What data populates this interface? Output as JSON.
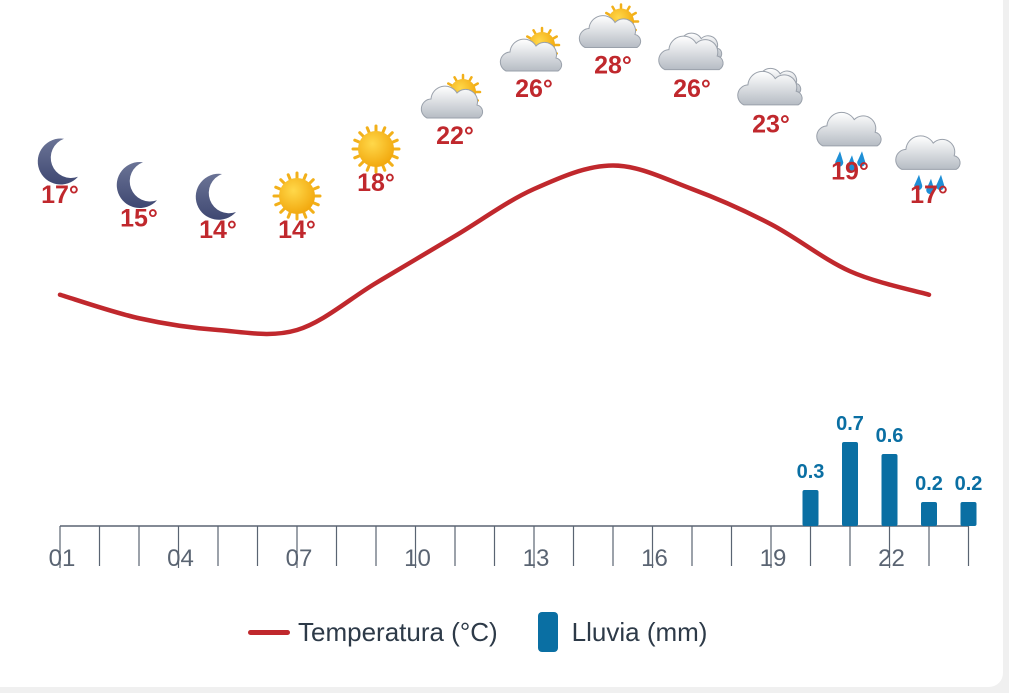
{
  "colors": {
    "temperature": "#c0282d",
    "rain": "#0a6fa3",
    "axis": "#5a6472",
    "legend_text": "#2d3a48"
  },
  "chart_data": {
    "type": "line",
    "x_tick_labels": [
      "01",
      "04",
      "07",
      "10",
      "13",
      "16",
      "19",
      "22"
    ],
    "hours": [
      1,
      3,
      5,
      7,
      9,
      11,
      13,
      15,
      17,
      19,
      21,
      23
    ],
    "icons": [
      "moon-icon",
      "moon-icon",
      "moon-icon",
      "sun-icon",
      "sun-icon",
      "sun-cloud-icon",
      "sun-cloud-icon",
      "sun-cloud-icon",
      "cloud-icon",
      "cloud-icon",
      "rain-cloud-icon",
      "rain-cloud-icon"
    ],
    "temperature_labels": [
      "17°",
      "15°",
      "14°",
      "14°",
      "18°",
      "22°",
      "26°",
      "28°",
      "26°",
      "23°",
      "19°",
      "17°"
    ],
    "series": [
      {
        "name": "Temperatura (°C)",
        "type": "line",
        "x": [
          1,
          3,
          5,
          7,
          9,
          11,
          13,
          15,
          17,
          19,
          21,
          23
        ],
        "values": [
          17,
          15,
          14,
          14,
          18,
          22,
          26,
          28,
          26,
          23,
          19,
          17
        ]
      },
      {
        "name": "Lluvia (mm)",
        "type": "bar",
        "x": [
          20,
          21,
          22,
          23,
          24
        ],
        "values": [
          0.3,
          0.7,
          0.6,
          0.2,
          0.2
        ],
        "labels": [
          "0.3",
          "0.7",
          "0.6",
          "0.2",
          "0.2"
        ]
      }
    ],
    "legend": [
      "Temperatura (°C)",
      "Lluvia (mm)"
    ],
    "legend_position": "bottom"
  }
}
